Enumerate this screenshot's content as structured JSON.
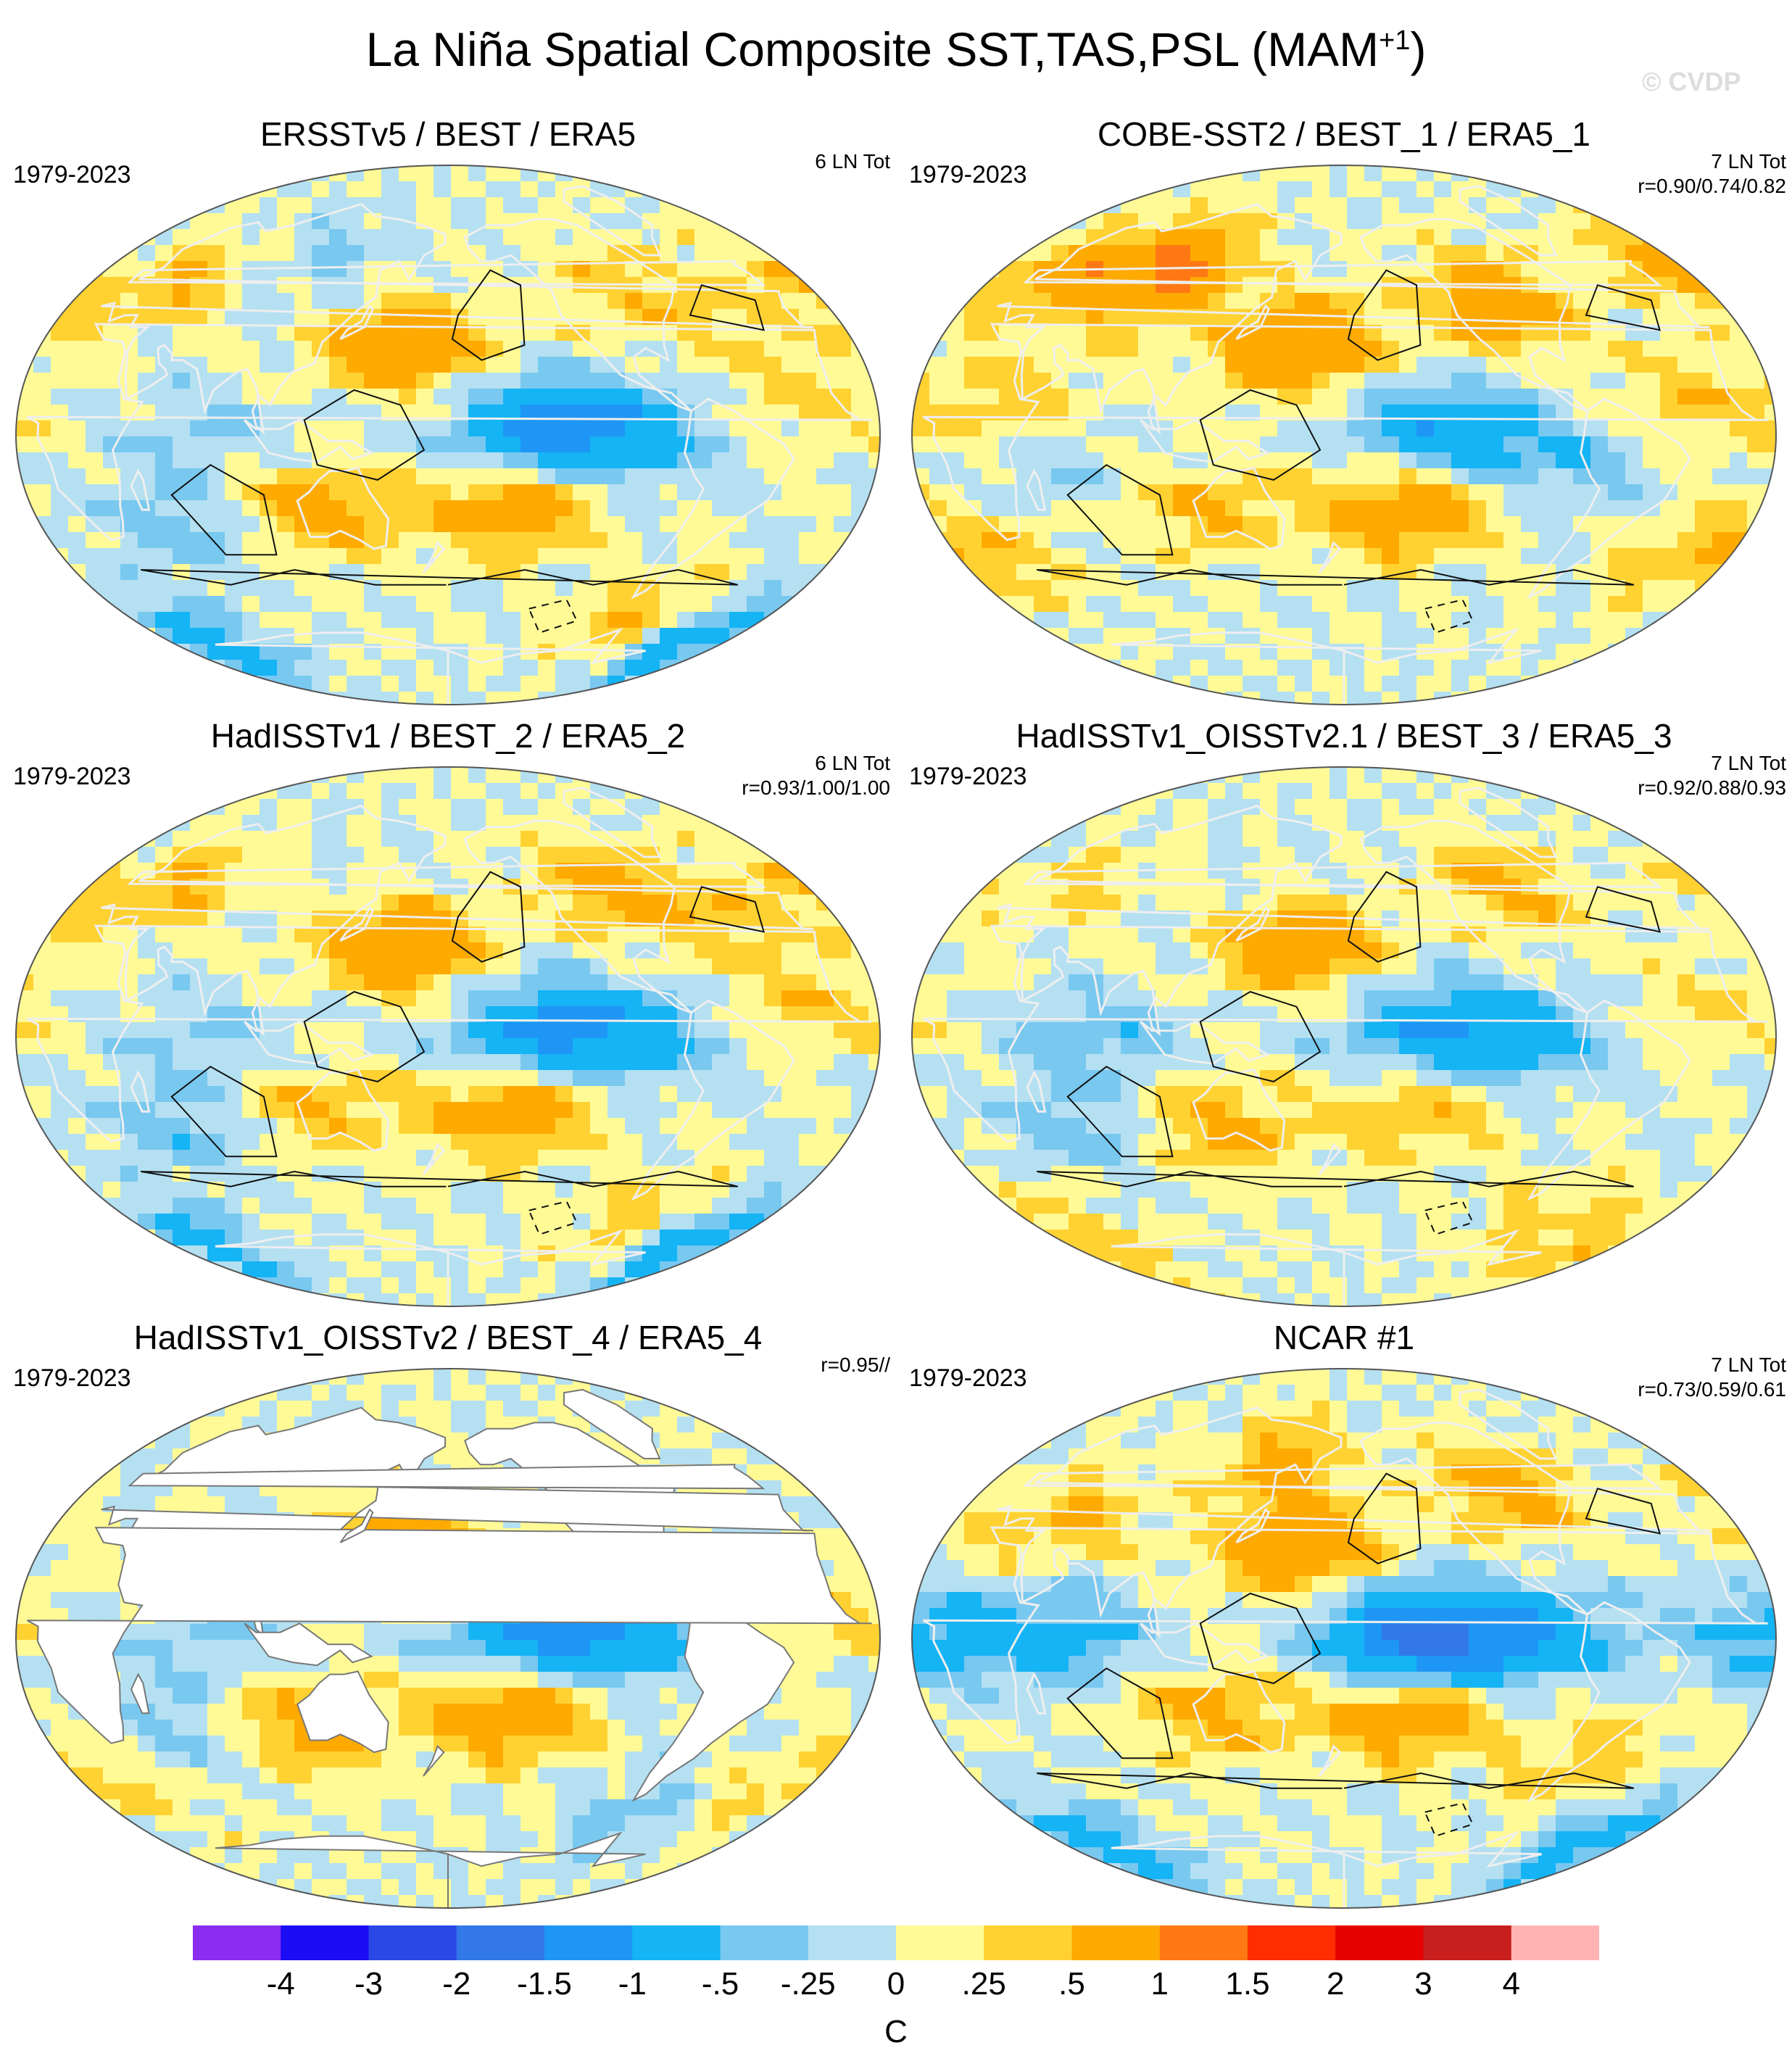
{
  "figure": {
    "title": "La Niña Spatial Composite SST,TAS,PSL (MAM",
    "title_superscript": "+1",
    "title_close": ")",
    "watermark": "© CVDP"
  },
  "panels": [
    {
      "title": "ERSSTv5 / BEST / ERA5",
      "period": "1979-2023",
      "stats": [
        "6 LN Tot"
      ],
      "land_masked": false,
      "pattern": 0
    },
    {
      "title": "COBE-SST2 / BEST_1 / ERA5_1",
      "period": "1979-2023",
      "stats": [
        "7 LN Tot",
        "r=0.90/0.74/0.82"
      ],
      "land_masked": false,
      "pattern": 1
    },
    {
      "title": "HadISSTv1 / BEST_2 / ERA5_2",
      "period": "1979-2023",
      "stats": [
        "6 LN Tot",
        "r=0.93/1.00/1.00"
      ],
      "land_masked": false,
      "pattern": 2
    },
    {
      "title": "HadISSTv1_OISSTv2.1 / BEST_3 / ERA5_3",
      "period": "1979-2023",
      "stats": [
        "7 LN Tot",
        "r=0.92/0.88/0.93"
      ],
      "land_masked": false,
      "pattern": 3
    },
    {
      "title": "HadISSTv1_OISSTv2 / BEST_4 / ERA5_4",
      "period": "1979-2023",
      "stats": [
        "r=0.95//"
      ],
      "land_masked": true,
      "pattern": 4
    },
    {
      "title": "NCAR #1",
      "period": "1979-2023",
      "stats": [
        "7 LN Tot",
        "r=0.73/0.59/0.61"
      ],
      "land_masked": false,
      "pattern": 5
    }
  ],
  "colorbar": {
    "unit": "C",
    "colors": [
      "#8b2cf0",
      "#1a0cf5",
      "#2a48e6",
      "#3278e8",
      "#1e96f5",
      "#14b4f5",
      "#78c8f0",
      "#b4e0f2",
      "#fffa96",
      "#ffd232",
      "#ffaa00",
      "#ff7814",
      "#ff2d00",
      "#e60000",
      "#c81e1e",
      "#ffb4b4"
    ],
    "labels": [
      "-4",
      "-3",
      "-2",
      "-1.5",
      "-1",
      "-.5",
      "-.25",
      "0",
      ".25",
      ".5",
      "1",
      "1.5",
      "2",
      "3",
      "4"
    ]
  },
  "anomaly_blobs": [
    [
      {
        "lon": -140,
        "lat": 2,
        "val": -1.1
      },
      {
        "lon": -100,
        "lat": 0,
        "val": -0.6
      },
      {
        "lon": 160,
        "lat": 30,
        "val": 0.9
      },
      {
        "lon": -150,
        "lat": -25,
        "val": 0.8
      },
      {
        "lon": 120,
        "lat": -25,
        "val": 0.7
      },
      {
        "lon": 60,
        "lat": -30,
        "val": -0.4
      },
      {
        "lon": 30,
        "lat": 50,
        "val": 0.5
      },
      {
        "lon": -90,
        "lat": 50,
        "val": 0.4
      },
      {
        "lon": -30,
        "lat": 10,
        "val": 0.3
      },
      {
        "lon": 0,
        "lat": -70,
        "val": -0.8
      },
      {
        "lon": -60,
        "lat": -60,
        "val": 0.5
      },
      {
        "lon": 80,
        "lat": 0,
        "val": -0.3
      },
      {
        "lon": -40,
        "lat": 40,
        "val": 0.3
      },
      {
        "lon": 100,
        "lat": 60,
        "val": -0.3
      }
    ],
    [
      {
        "lon": -140,
        "lat": 2,
        "val": -0.9
      },
      {
        "lon": 160,
        "lat": 30,
        "val": 1.0
      },
      {
        "lon": -150,
        "lat": -25,
        "val": 0.9
      },
      {
        "lon": 80,
        "lat": 55,
        "val": 1.1
      },
      {
        "lon": 20,
        "lat": 55,
        "val": 0.7
      },
      {
        "lon": -100,
        "lat": 45,
        "val": 0.9
      },
      {
        "lon": 120,
        "lat": -25,
        "val": 0.5
      },
      {
        "lon": 0,
        "lat": -40,
        "val": 0.5
      },
      {
        "lon": -30,
        "lat": 10,
        "val": 0.4
      },
      {
        "lon": -90,
        "lat": -10,
        "val": -0.4
      },
      {
        "lon": 60,
        "lat": -10,
        "val": -0.3
      },
      {
        "lon": 40,
        "lat": 10,
        "val": 0.4
      }
    ],
    [
      {
        "lon": -140,
        "lat": 2,
        "val": -1.0
      },
      {
        "lon": -100,
        "lat": 0,
        "val": -0.6
      },
      {
        "lon": 160,
        "lat": 30,
        "val": 0.9
      },
      {
        "lon": -150,
        "lat": -25,
        "val": 0.8
      },
      {
        "lon": 120,
        "lat": -25,
        "val": 0.5
      },
      {
        "lon": 60,
        "lat": -30,
        "val": -0.4
      },
      {
        "lon": 30,
        "lat": 50,
        "val": 0.5
      },
      {
        "lon": -90,
        "lat": 50,
        "val": 0.7
      },
      {
        "lon": -30,
        "lat": 10,
        "val": 0.4
      },
      {
        "lon": 0,
        "lat": -70,
        "val": -0.7
      },
      {
        "lon": -60,
        "lat": -60,
        "val": 0.4
      },
      {
        "lon": 80,
        "lat": 0,
        "val": -0.3
      },
      {
        "lon": -40,
        "lat": 40,
        "val": 0.3
      }
    ],
    [
      {
        "lon": -140,
        "lat": 2,
        "val": -0.9
      },
      {
        "lon": -100,
        "lat": 0,
        "val": -0.5
      },
      {
        "lon": 160,
        "lat": 30,
        "val": 0.8
      },
      {
        "lon": -150,
        "lat": -25,
        "val": 0.5
      },
      {
        "lon": 120,
        "lat": -30,
        "val": 0.6
      },
      {
        "lon": 60,
        "lat": -30,
        "val": -0.4
      },
      {
        "lon": 30,
        "lat": 50,
        "val": 0.3
      },
      {
        "lon": -90,
        "lat": 50,
        "val": 0.6
      },
      {
        "lon": -30,
        "lat": 10,
        "val": 0.3
      },
      {
        "lon": 0,
        "lat": -70,
        "val": 0.4
      },
      {
        "lon": -60,
        "lat": -60,
        "val": 0.3
      },
      {
        "lon": 80,
        "lat": 0,
        "val": -0.4
      }
    ],
    [
      {
        "lon": -140,
        "lat": 2,
        "val": -1.1
      },
      {
        "lon": -100,
        "lat": 0,
        "val": -0.6
      },
      {
        "lon": 160,
        "lat": 30,
        "val": 1.0
      },
      {
        "lon": -150,
        "lat": -25,
        "val": 0.9
      },
      {
        "lon": 110,
        "lat": -30,
        "val": 0.7
      },
      {
        "lon": 60,
        "lat": -30,
        "val": -0.4
      },
      {
        "lon": -30,
        "lat": 10,
        "val": 0.4
      },
      {
        "lon": 0,
        "lat": -50,
        "val": 0.4
      },
      {
        "lon": -60,
        "lat": -60,
        "val": -0.4
      },
      {
        "lon": 80,
        "lat": 0,
        "val": -0.3
      }
    ],
    [
      {
        "lon": -150,
        "lat": 0,
        "val": -1.7
      },
      {
        "lon": -100,
        "lat": 0,
        "val": -0.8
      },
      {
        "lon": 160,
        "lat": 30,
        "val": 0.9
      },
      {
        "lon": -150,
        "lat": -25,
        "val": 0.9
      },
      {
        "lon": 120,
        "lat": -25,
        "val": 0.6
      },
      {
        "lon": 60,
        "lat": 0,
        "val": -0.7
      },
      {
        "lon": 0,
        "lat": 0,
        "val": -0.6
      },
      {
        "lon": -90,
        "lat": 50,
        "val": 0.7
      },
      {
        "lon": 40,
        "lat": 40,
        "val": 0.5
      },
      {
        "lon": 0,
        "lat": -70,
        "val": -0.8
      },
      {
        "lon": 140,
        "lat": 60,
        "val": 0.6
      },
      {
        "lon": -60,
        "lat": -40,
        "val": 0.4
      }
    ]
  ]
}
